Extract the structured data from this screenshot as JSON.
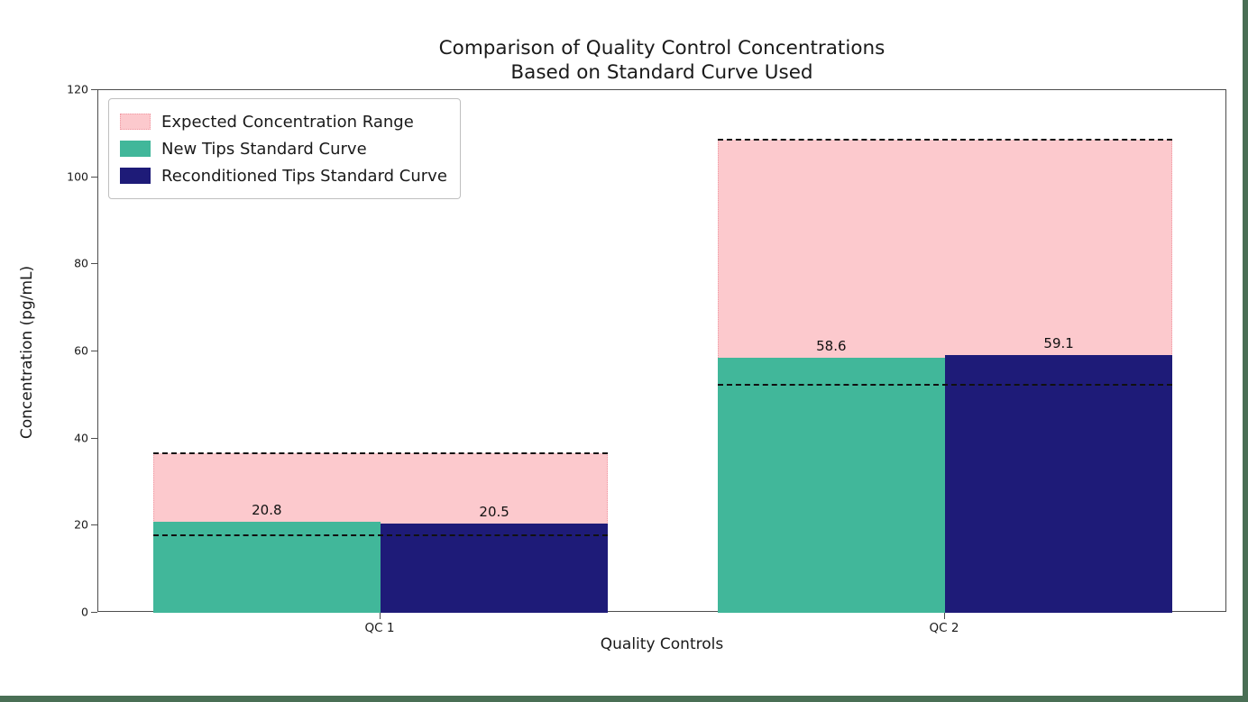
{
  "window": {
    "edge_color": "#4a6f55"
  },
  "chart_data": {
    "type": "bar",
    "title_lines": [
      "Comparison of Quality Control Concentrations",
      "Based on Standard Curve Used"
    ],
    "xlabel": "Quality Controls",
    "ylabel": "Concentration (pg/mL)",
    "categories": [
      "QC 1",
      "QC 2"
    ],
    "series": [
      {
        "name": "New Tips Standard Curve",
        "color": "#41b79a",
        "values": [
          20.8,
          58.6
        ]
      },
      {
        "name": "Reconditioned Tips Standard Curve",
        "color": "#1e1b78",
        "values": [
          20.5,
          59.1
        ]
      }
    ],
    "bar_value_labels": [
      "20.8",
      "20.5",
      "58.6",
      "59.1"
    ],
    "expected_range": {
      "name": "Expected Concentration Range",
      "fill_color": "#fcc9cd",
      "edge_color": "#f09aa4",
      "boundary_line_color": "#111111",
      "boundary_line_style": "dashed",
      "ranges": [
        {
          "category": "QC 1",
          "low": 17.8,
          "high": 36.7
        },
        {
          "category": "QC 2",
          "low": 52.3,
          "high": 108.6
        }
      ]
    },
    "ylim": [
      0,
      120
    ],
    "yticks": [
      0,
      20,
      40,
      60,
      80,
      100,
      120
    ],
    "grid": false,
    "legend": {
      "position": "upper-left",
      "entries": [
        {
          "label": "Expected Concentration Range",
          "color": "#fcc9cd",
          "edge": "#f09aa4"
        },
        {
          "label": "New Tips Standard Curve",
          "color": "#41b79a",
          "edge": "#41b79a"
        },
        {
          "label": "Reconditioned Tips Standard Curve",
          "color": "#1e1b78",
          "edge": "#1e1b78"
        }
      ]
    }
  }
}
